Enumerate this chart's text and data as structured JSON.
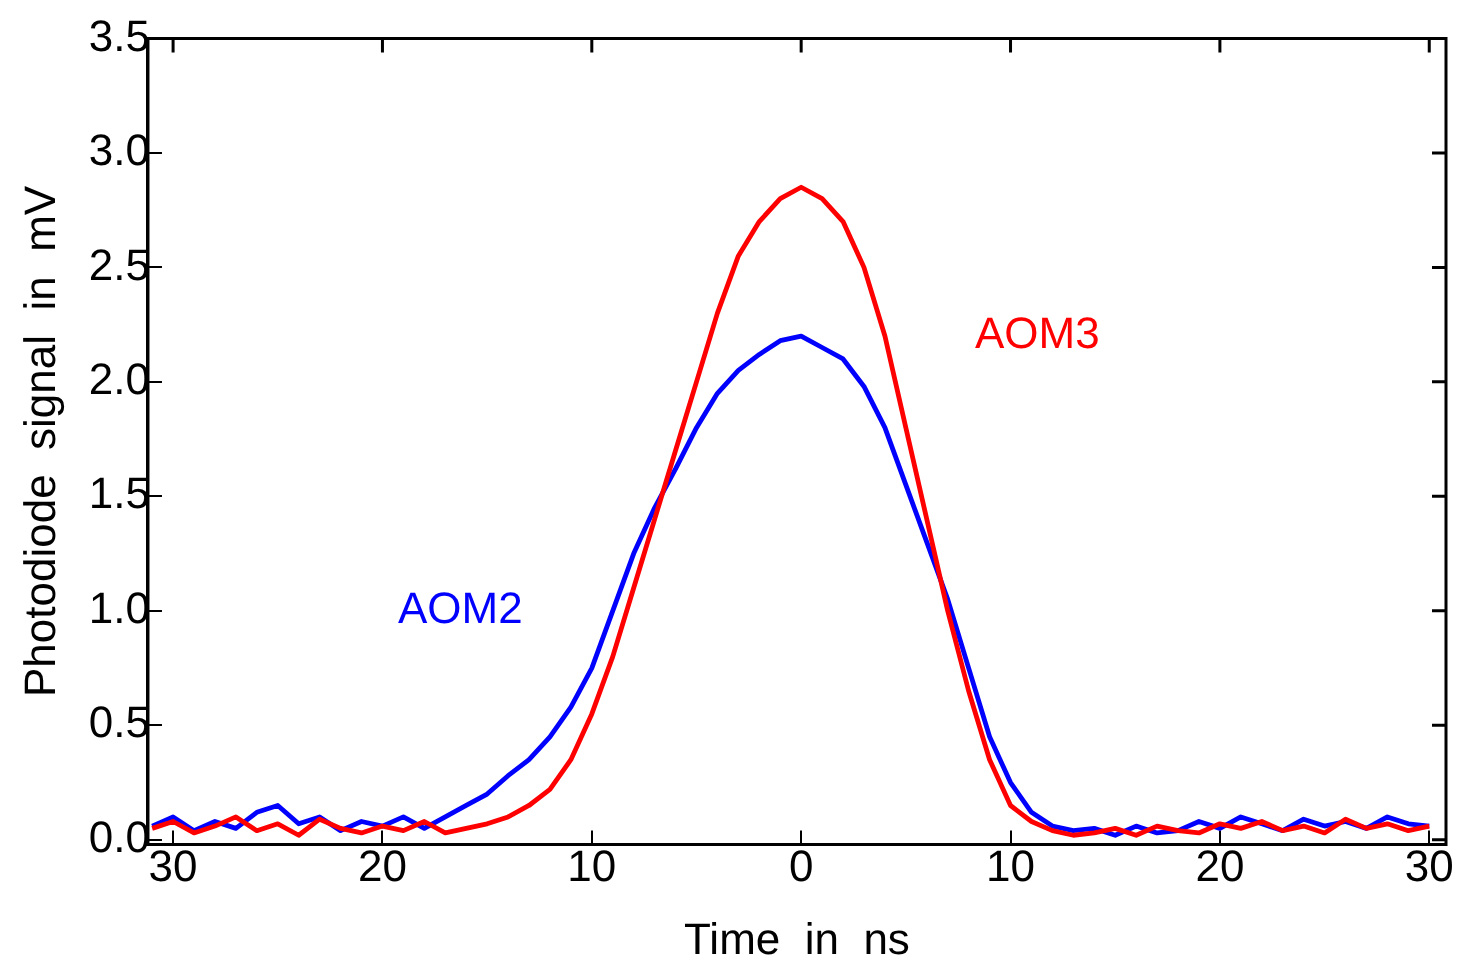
{
  "chart_data": {
    "type": "line",
    "xlabel": "Time  in  ns",
    "ylabel": "Photodiode  signal  in  mV",
    "xlim": [
      -31.2,
      30.8
    ],
    "ylim": [
      -0.02,
      3.5
    ],
    "xticks": [
      {
        "value": -30,
        "label": "30"
      },
      {
        "value": -20,
        "label": "20"
      },
      {
        "value": -10,
        "label": "10"
      },
      0,
      10,
      20,
      30
    ],
    "yticks": [
      {
        "value": 0,
        "label": "0.0"
      },
      0.5,
      {
        "value": 1,
        "label": "1.0"
      },
      1.5,
      {
        "value": 2,
        "label": "2.0"
      },
      2.5,
      {
        "value": 3,
        "label": "3.0"
      },
      3.5
    ],
    "grid": false,
    "legend": false,
    "marker": "none",
    "line_style": "solid",
    "x": [
      -31,
      -30,
      -29,
      -28,
      -27,
      -26,
      -25,
      -24,
      -23,
      -22,
      -21,
      -20,
      -19,
      -18,
      -17,
      -16,
      -15,
      -14,
      -13,
      -12,
      -11,
      -10,
      -9,
      -8,
      -7,
      -6,
      -5,
      -4,
      -3,
      -2,
      -1,
      0,
      1,
      2,
      3,
      4,
      5,
      6,
      7,
      8,
      9,
      10,
      11,
      12,
      13,
      14,
      15,
      16,
      17,
      18,
      19,
      20,
      21,
      22,
      23,
      24,
      25,
      26,
      27,
      28,
      29,
      30
    ],
    "series": [
      {
        "name": "AOM3",
        "color": "#ff0000",
        "values": [
          0.05,
          0.08,
          0.03,
          0.06,
          0.1,
          0.04,
          0.07,
          0.02,
          0.09,
          0.05,
          0.03,
          0.06,
          0.04,
          0.08,
          0.03,
          0.05,
          0.07,
          0.1,
          0.15,
          0.22,
          0.35,
          0.55,
          0.8,
          1.1,
          1.4,
          1.7,
          2.0,
          2.3,
          2.55,
          2.7,
          2.8,
          2.85,
          2.8,
          2.7,
          2.5,
          2.2,
          1.8,
          1.4,
          1.0,
          0.65,
          0.35,
          0.15,
          0.08,
          0.04,
          0.02,
          0.03,
          0.05,
          0.02,
          0.06,
          0.04,
          0.03,
          0.07,
          0.05,
          0.08,
          0.04,
          0.06,
          0.03,
          0.09,
          0.05,
          0.07,
          0.04,
          0.06
        ]
      },
      {
        "name": "AOM2",
        "color": "#0000ff",
        "values": [
          0.06,
          0.1,
          0.04,
          0.08,
          0.05,
          0.12,
          0.15,
          0.07,
          0.1,
          0.04,
          0.08,
          0.06,
          0.1,
          0.05,
          0.1,
          0.15,
          0.2,
          0.28,
          0.35,
          0.45,
          0.58,
          0.75,
          1.0,
          1.25,
          1.45,
          1.62,
          1.8,
          1.95,
          2.05,
          2.12,
          2.18,
          2.2,
          2.15,
          2.1,
          1.98,
          1.8,
          1.55,
          1.3,
          1.05,
          0.75,
          0.45,
          0.25,
          0.12,
          0.06,
          0.04,
          0.05,
          0.02,
          0.06,
          0.03,
          0.04,
          0.08,
          0.05,
          0.1,
          0.07,
          0.04,
          0.09,
          0.06,
          0.08,
          0.05,
          0.1,
          0.07,
          0.06
        ]
      }
    ]
  }
}
